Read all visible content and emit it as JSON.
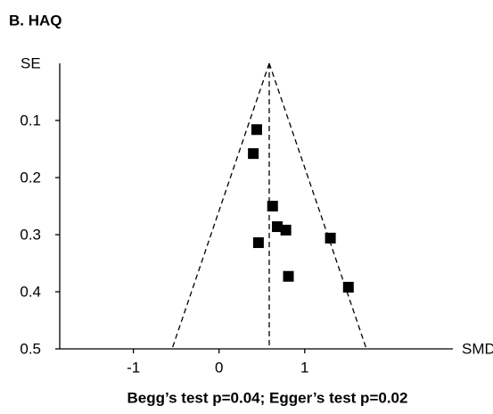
{
  "chart_data": {
    "type": "scatter",
    "title": "B. HAQ",
    "ylabel": "SE",
    "xlabel": "SMD",
    "caption": "Begg’s test p=0.04; Egger’s test p=0.02",
    "x": [
      0.44,
      0.4,
      0.625,
      0.68,
      0.78,
      0.46,
      1.3,
      0.81,
      1.51
    ],
    "values": [
      0.116,
      0.158,
      0.25,
      0.286,
      0.292,
      0.314,
      0.306,
      0.373,
      0.392
    ],
    "color": "#000000",
    "xlim": [
      -1.86,
      2.73
    ],
    "xticks": [
      -1,
      0,
      1
    ],
    "ylim": [
      0,
      0.5
    ],
    "yticks": [
      0.1,
      0.2,
      0.3,
      0.4,
      0.5
    ],
    "y_reversed": true
  }
}
